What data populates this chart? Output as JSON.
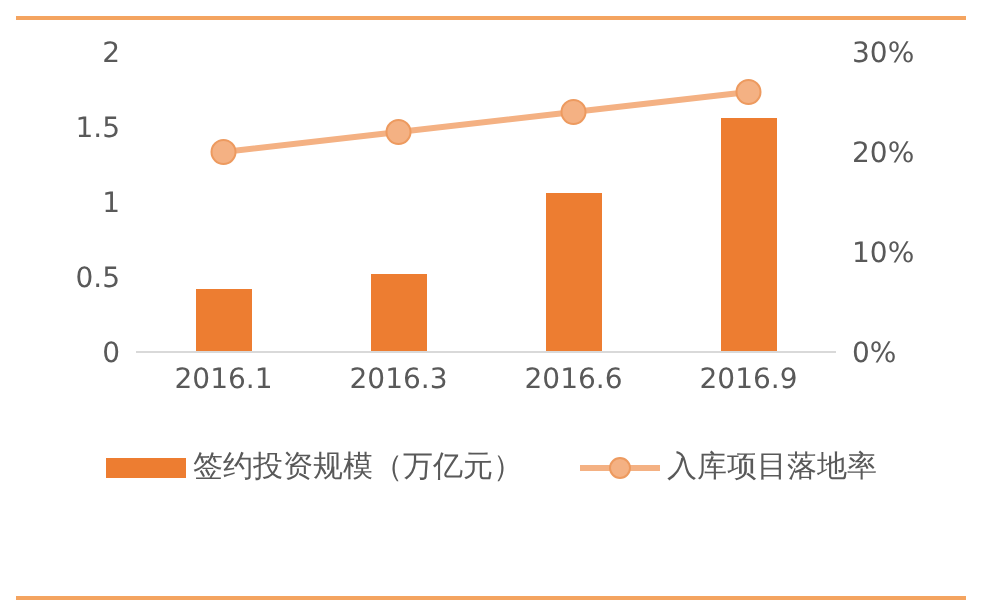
{
  "chart_data": {
    "type": "bar",
    "categories": [
      "2016.1",
      "2016.3",
      "2016.6",
      "2016.9"
    ],
    "series": [
      {
        "name": "签约投资规模（万亿元）",
        "color": "#ed7d31",
        "values": [
          0.42,
          0.52,
          1.06,
          1.56
        ]
      },
      {
        "name": "入库项目落地率",
        "type": "line",
        "axis": "y2",
        "color": "#f4b183",
        "values": [
          20,
          22,
          24,
          26
        ]
      }
    ],
    "ylim": [
      0,
      2
    ],
    "yticks": [
      0,
      0.5,
      1,
      1.5,
      2
    ],
    "y2lim": [
      0,
      30
    ],
    "y2ticks": [
      {
        "value": 0,
        "label": "0%"
      },
      {
        "value": 10,
        "label": "10%"
      },
      {
        "value": 20,
        "label": "20%"
      },
      {
        "value": 30,
        "label": "30%"
      }
    ],
    "marker": "circle",
    "legend": "bottom"
  }
}
